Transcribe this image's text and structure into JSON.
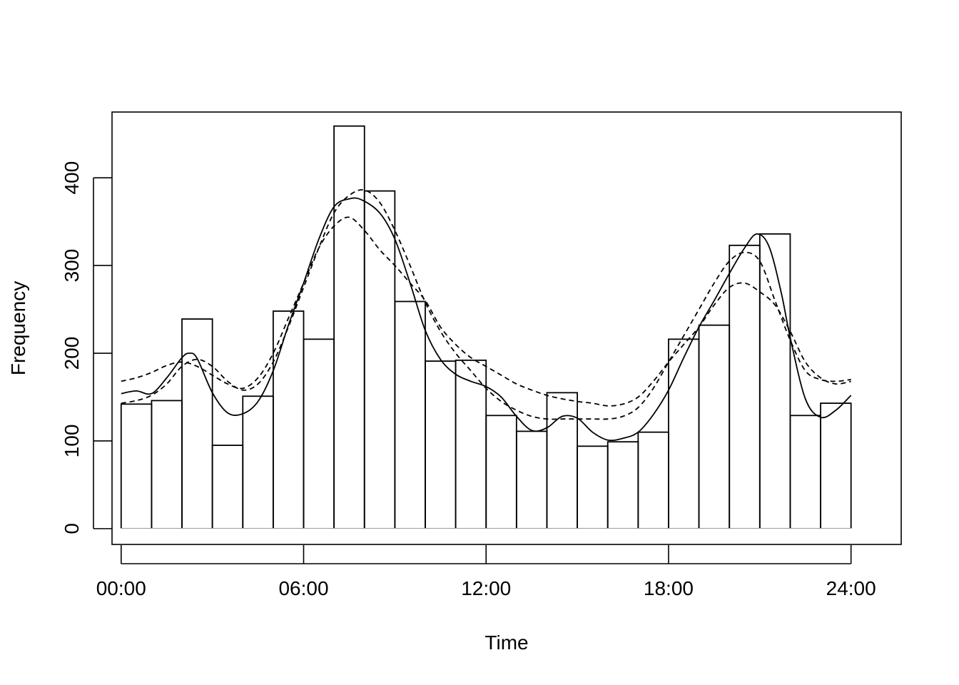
{
  "chart_data": {
    "type": "line",
    "title": "",
    "xlabel": "Time",
    "ylabel": "Frequency",
    "xlim": [
      -0.3,
      25.65
    ],
    "ylim": [
      -18,
      475
    ],
    "x_ticks": [
      0,
      6,
      12,
      18,
      24
    ],
    "x_tick_labels": [
      "00:00",
      "06:00",
      "12:00",
      "18:00",
      "24:00"
    ],
    "y_ticks": [
      0,
      100,
      200,
      300,
      400
    ],
    "y_tick_labels": [
      "0",
      "100",
      "200",
      "300",
      "400"
    ],
    "grid": false,
    "legend": "none",
    "histogram": {
      "bin_edges": [
        0,
        1,
        2,
        3,
        4,
        5,
        6,
        7,
        8,
        9,
        10,
        11,
        12,
        13,
        14,
        15,
        16,
        17,
        18,
        19,
        20,
        21,
        22,
        23,
        24
      ],
      "counts": [
        142,
        146,
        239,
        95,
        151,
        248,
        216,
        459,
        385,
        259,
        191,
        192,
        129,
        111,
        155,
        94,
        99,
        110,
        216,
        232,
        323,
        336,
        129,
        143
      ]
    },
    "series": [
      {
        "style": "solid",
        "x": [
          0,
          0.5,
          1,
          1.5,
          2,
          2.25,
          2.5,
          3,
          3.5,
          4,
          4.5,
          5,
          5.5,
          6,
          6.5,
          7,
          7.5,
          7.9,
          8.5,
          9,
          9.5,
          10,
          10.5,
          11,
          11.5,
          12,
          12.5,
          13,
          13.5,
          14,
          14.5,
          15,
          15.5,
          16,
          16.5,
          17,
          17.5,
          18,
          18.5,
          19,
          19.5,
          20,
          20.5,
          20.9,
          21.3,
          21.7,
          22,
          22.5,
          23,
          23.5,
          24
        ],
        "y": [
          154,
          157,
          154,
          172,
          195,
          200,
          194,
          155,
          132,
          131,
          145,
          180,
          232,
          280,
          330,
          367,
          376,
          375,
          360,
          330,
          280,
          226,
          193,
          176,
          168,
          162,
          150,
          128,
          112,
          115,
          128,
          126,
          110,
          101,
          103,
          110,
          130,
          158,
          195,
          230,
          260,
          291,
          320,
          336,
          322,
          270,
          218,
          148,
          127,
          135,
          152
        ]
      },
      {
        "style": "dashed",
        "x": [
          0,
          0.5,
          1,
          1.5,
          2,
          2.5,
          3,
          3.5,
          4,
          4.5,
          5,
          5.5,
          6,
          6.5,
          7,
          7.5,
          8,
          8.5,
          9,
          9.5,
          10,
          10.5,
          11,
          11.5,
          12,
          12.5,
          13,
          13.5,
          14,
          14.5,
          15,
          15.5,
          16,
          16.5,
          17,
          17.5,
          18,
          18.5,
          19,
          19.5,
          20,
          20.5,
          21,
          21.5,
          22,
          22.5,
          23,
          23.5,
          24
        ],
        "y": [
          143,
          146,
          152,
          165,
          185,
          193,
          185,
          168,
          158,
          165,
          190,
          230,
          275,
          320,
          360,
          380,
          386,
          372,
          340,
          300,
          258,
          225,
          200,
          180,
          160,
          145,
          135,
          128,
          125,
          125,
          125,
          125,
          125,
          128,
          138,
          160,
          190,
          220,
          250,
          280,
          305,
          315,
          305,
          260,
          215,
          180,
          170,
          168,
          170
        ]
      },
      {
        "style": "dashed",
        "x": [
          0,
          0.5,
          1,
          1.5,
          2,
          2.5,
          3,
          3.5,
          4,
          4.5,
          5,
          5.5,
          6,
          6.5,
          7,
          7.5,
          8,
          8.5,
          9,
          9.5,
          10,
          10.5,
          11,
          11.5,
          12,
          12.5,
          13,
          13.5,
          14,
          14.5,
          15,
          15.5,
          16,
          16.5,
          17,
          17.5,
          18,
          18.5,
          19,
          19.5,
          20,
          20.5,
          21,
          21.5,
          22,
          22.5,
          23,
          23.5,
          24
        ],
        "y": [
          168,
          172,
          178,
          186,
          190,
          185,
          175,
          165,
          160,
          172,
          200,
          240,
          280,
          320,
          345,
          355,
          340,
          318,
          300,
          280,
          260,
          230,
          210,
          195,
          185,
          175,
          165,
          158,
          152,
          148,
          145,
          143,
          140,
          142,
          150,
          168,
          190,
          210,
          230,
          255,
          275,
          280,
          270,
          255,
          225,
          190,
          172,
          165,
          168
        ]
      }
    ]
  }
}
